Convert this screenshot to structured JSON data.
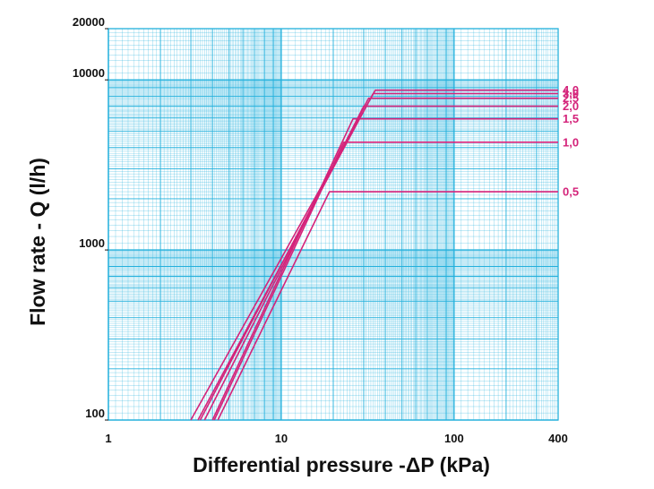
{
  "chart_data": {
    "type": "line",
    "title": "",
    "xlabel": "Differential pressure -ΔP (kPa)",
    "ylabel": "Flow rate - Q (l/h)",
    "x_scale": "log",
    "y_scale": "log",
    "xlim": [
      1,
      400
    ],
    "ylim": [
      100,
      20000
    ],
    "grid": true,
    "x_ticks": [
      {
        "value": 1,
        "label": "1"
      },
      {
        "value": 10,
        "label": "10"
      },
      {
        "value": 100,
        "label": "100"
      },
      {
        "value": 400,
        "label": "400"
      }
    ],
    "y_ticks": [
      {
        "value": 100,
        "label": "100"
      },
      {
        "value": 1000,
        "label": "1000"
      },
      {
        "value": 10000,
        "label": "10000"
      },
      {
        "value": 20000,
        "label": "20000"
      }
    ],
    "colors": {
      "grid": "#22b0dc",
      "series": "#d4237a",
      "text": "#111111"
    },
    "series": [
      {
        "label": "4,0",
        "points": [
          [
            3.0,
            100
          ],
          [
            35,
            8700
          ],
          [
            400,
            8700
          ]
        ]
      },
      {
        "label": "3,0",
        "points": [
          [
            3.3,
            100
          ],
          [
            34,
            8300
          ],
          [
            400,
            8300
          ]
        ]
      },
      {
        "label": "2,5",
        "points": [
          [
            3.4,
            100
          ],
          [
            32,
            7800
          ],
          [
            400,
            7800
          ]
        ]
      },
      {
        "label": "2,0",
        "points": [
          [
            3.6,
            100
          ],
          [
            30,
            7000
          ],
          [
            400,
            7000
          ]
        ]
      },
      {
        "label": "1,5",
        "points": [
          [
            4.0,
            100
          ],
          [
            26,
            5900
          ],
          [
            400,
            5900
          ]
        ]
      },
      {
        "label": "1,0",
        "points": [
          [
            4.1,
            100
          ],
          [
            23,
            4300
          ],
          [
            400,
            4300
          ]
        ]
      },
      {
        "label": "0,5",
        "points": [
          [
            4.3,
            100
          ],
          [
            19,
            2200
          ],
          [
            400,
            2200
          ]
        ]
      }
    ]
  }
}
